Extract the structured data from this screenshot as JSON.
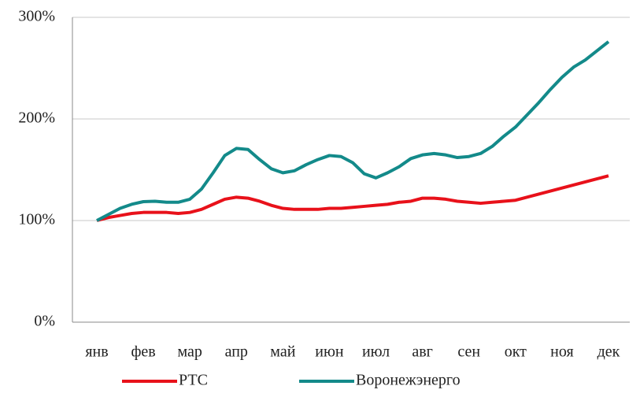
{
  "chart_data": {
    "type": "line",
    "categories": [
      "янв",
      null,
      null,
      null,
      "фев",
      null,
      null,
      null,
      "мар",
      null,
      null,
      null,
      "апр",
      null,
      null,
      null,
      "май",
      null,
      null,
      null,
      "июн",
      null,
      null,
      null,
      "июл",
      null,
      null,
      null,
      "авг",
      null,
      null,
      null,
      "сен",
      null,
      null,
      null,
      "окт",
      null,
      null,
      null,
      "ноя",
      null,
      null,
      null,
      "дек"
    ],
    "series": [
      {
        "name": "РТС",
        "color": "#e8111a",
        "values": [
          100,
          103,
          105,
          107,
          108,
          108,
          108,
          107,
          108,
          111,
          116,
          121,
          123,
          122,
          119,
          115,
          112,
          111,
          111,
          111,
          112,
          112,
          113,
          114,
          115,
          116,
          118,
          119,
          122,
          122,
          121,
          119,
          118,
          117,
          118,
          119,
          120,
          123,
          126,
          129,
          132,
          135,
          138,
          141,
          144
        ]
      },
      {
        "name": "Воронежэнерго",
        "color": "#138a8a",
        "values": [
          100,
          106,
          112,
          116,
          118.6,
          119,
          118,
          118,
          121,
          131,
          147,
          164,
          171,
          170,
          160,
          151,
          147,
          149,
          155,
          160,
          164,
          163,
          157,
          146,
          142,
          147,
          153,
          161,
          164.6,
          166,
          164.6,
          162,
          163,
          166,
          173,
          183,
          192,
          204,
          216,
          229,
          241,
          251,
          258,
          267,
          276
        ]
      }
    ],
    "ylim": [
      0,
      300
    ],
    "yticks": [
      {
        "value": 0,
        "label": "0%"
      },
      {
        "value": 100,
        "label": "100%"
      },
      {
        "value": 200,
        "label": "200%"
      },
      {
        "value": 300,
        "label": "300%"
      }
    ],
    "grid": true
  }
}
